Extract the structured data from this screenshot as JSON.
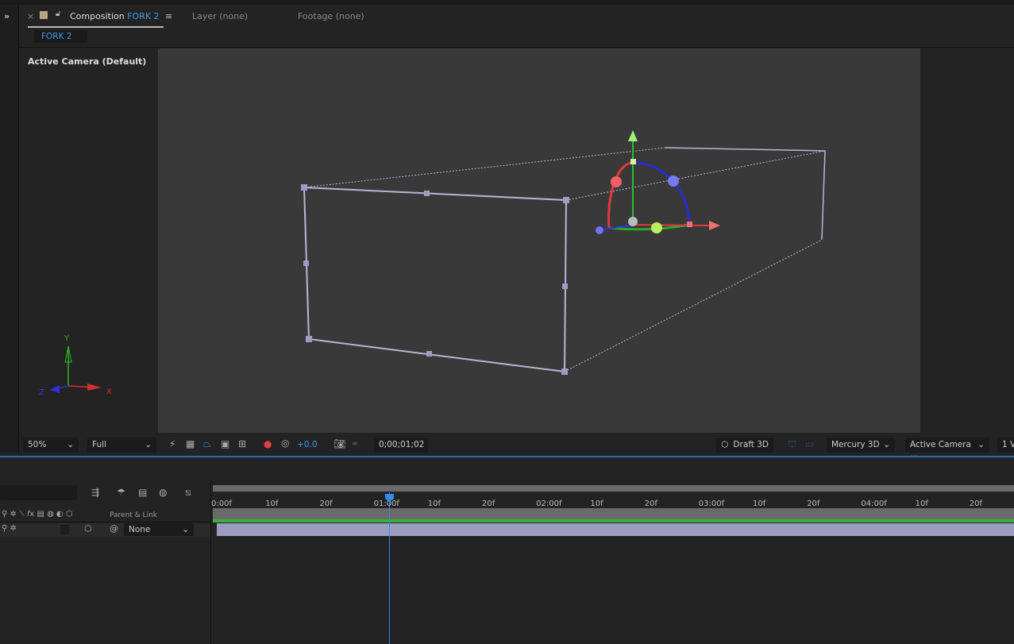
{
  "tabs": {
    "close": "×",
    "composition_label": "Composition",
    "composition_name": "FORK 2",
    "layer": "Layer (none)",
    "footage": "Footage (none)",
    "subtab": "FORK 2"
  },
  "viewer": {
    "camera_label": "Active Camera (Default)",
    "axes": {
      "x": "X",
      "y": "Y",
      "z": "Z"
    }
  },
  "toolbar": {
    "zoom": "50%",
    "resolution": "Full",
    "exposure": "+0.0",
    "timecode": "0;00;01;02",
    "draft3d": "Draft 3D",
    "renderer": "Mercury 3D",
    "camera": "Active Camera ...",
    "views": "1 V"
  },
  "timeline": {
    "parent_header": "Parent & Link",
    "parent_value": "None",
    "ruler": [
      "0:00f",
      "10f",
      "20f",
      "01:00f",
      "10f",
      "20f",
      "02:00f",
      "10f",
      "20f",
      "03:00f",
      "10f",
      "20f",
      "04:00f",
      "10f",
      "20f"
    ],
    "current_frame": 32
  },
  "colors": {
    "accent": "#2d8ceb",
    "layer_bar": "#9d9bc0",
    "work_area": "#3ab03a"
  }
}
